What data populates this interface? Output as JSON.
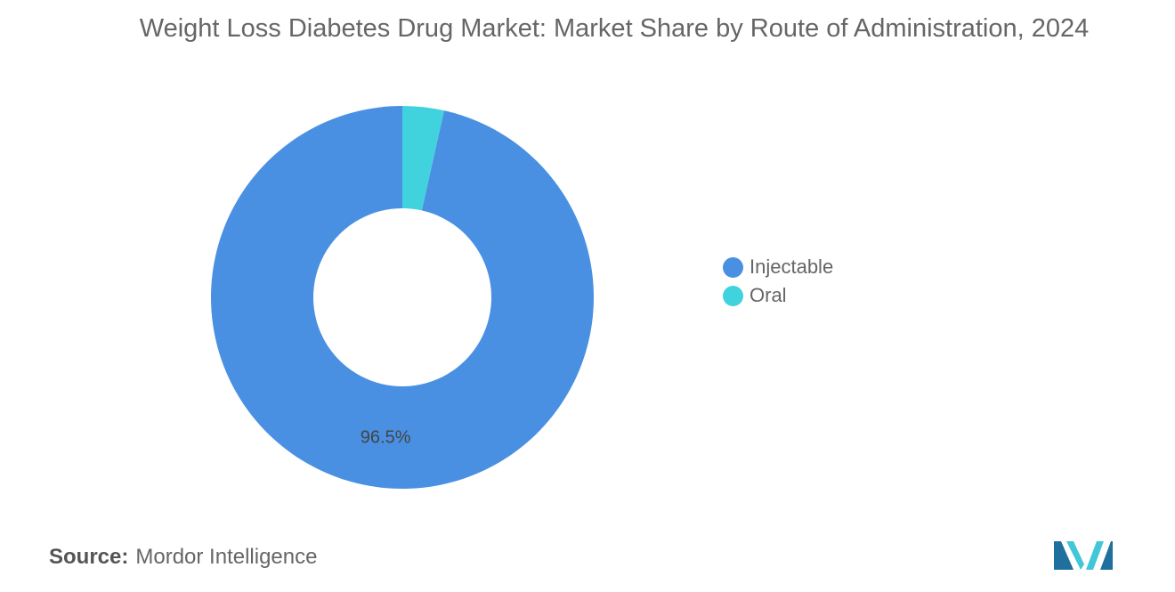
{
  "chart_data": {
    "type": "pie",
    "title": "Weight Loss Diabetes Drug Market: Market Share by Route of Administration, 2024",
    "series": [
      {
        "name": "Injectable",
        "value": 96.5,
        "color": "#4a90e2",
        "label": "96.5%"
      },
      {
        "name": "Oral",
        "value": 3.5,
        "color": "#41d3dd",
        "label": ""
      }
    ],
    "legend_position": "right"
  },
  "source": {
    "key": "Source:",
    "value": "Mordor Intelligence"
  },
  "logo": {
    "icon": "mordor-intelligence-logo",
    "colors": [
      "#1f6f9f",
      "#41c7d8"
    ]
  }
}
